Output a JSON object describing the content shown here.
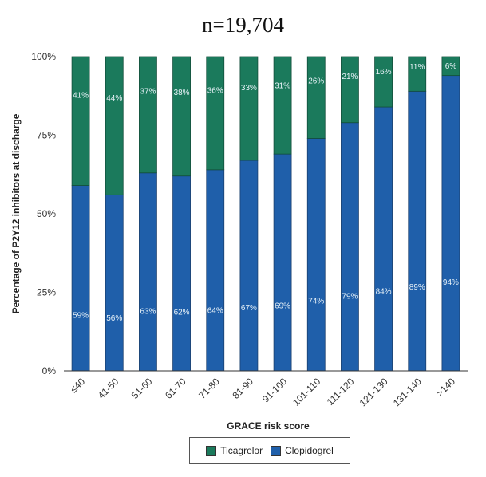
{
  "colors": {
    "ticagrelor": "#1b7a5c",
    "clopidogrel": "#1f5faa",
    "label_text": "#e8f2f8"
  },
  "chart_data": {
    "type": "bar",
    "stacked": true,
    "title": "n=19,704",
    "xlabel": "GRACE risk score",
    "ylabel": "Percentage of P2Y12 inhibitors at discharge",
    "ylim": [
      0,
      100
    ],
    "yticks": [
      "0%",
      "25%",
      "50%",
      "75%",
      "100%"
    ],
    "categories": [
      "≤40",
      "41-50",
      "51-60",
      "61-70",
      "71-80",
      "81-90",
      "91-100",
      "101-110",
      "111-120",
      "121-130",
      "131-140",
      ">140"
    ],
    "series": [
      {
        "name": "Clopidogrel",
        "values": [
          59,
          56,
          63,
          62,
          64,
          67,
          69,
          74,
          79,
          84,
          89,
          94
        ],
        "labels": [
          "59%",
          "56%",
          "63%",
          "62%",
          "64%",
          "67%",
          "69%",
          "74%",
          "79%",
          "84%",
          "89%",
          "94%"
        ]
      },
      {
        "name": "Ticagrelor",
        "values": [
          41,
          44,
          37,
          38,
          36,
          33,
          31,
          26,
          21,
          16,
          11,
          6
        ],
        "labels": [
          "41%",
          "44%",
          "37%",
          "38%",
          "36%",
          "33%",
          "31%",
          "26%",
          "21%",
          "16%",
          "11%",
          "6%"
        ]
      }
    ],
    "legend": {
      "position": "bottom",
      "items": [
        "Ticagrelor",
        "Clopidogrel"
      ]
    },
    "grid": false
  }
}
